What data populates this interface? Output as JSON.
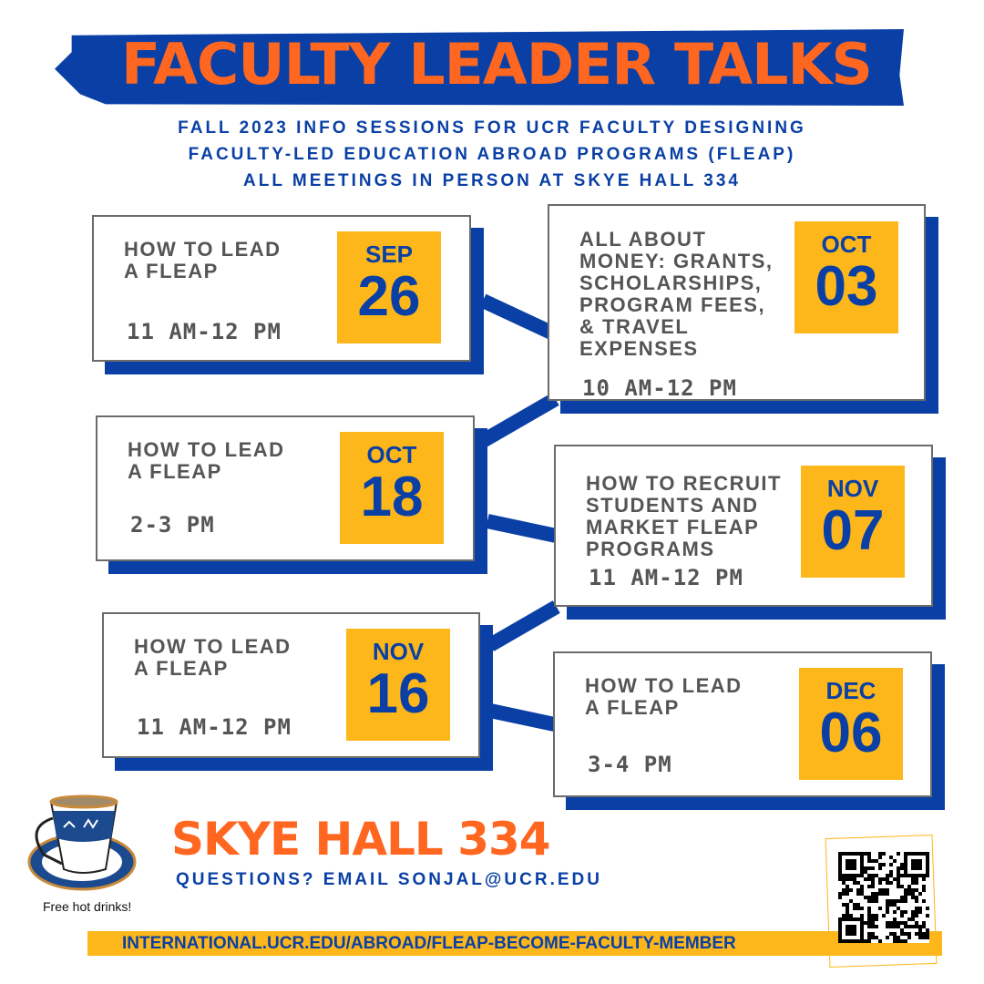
{
  "header": {
    "title": "FACULTY LEADER TALKS",
    "subtitle_lines": [
      "FALL 2023 INFO SESSIONS FOR UCR FACULTY DESIGNING",
      "FACULTY-LED EDUCATION ABROAD PROGRAMS (FLEAP)",
      "ALL MEETINGS IN PERSON AT SKYE HALL 334"
    ]
  },
  "sessions": [
    {
      "title": "HOW TO LEAD\nA FLEAP",
      "time": "11 AM-12 PM",
      "month": "SEP",
      "day": "26"
    },
    {
      "title": "ALL ABOUT\nMONEY: GRANTS,\nSCHOLARSHIPS,\nPROGRAM FEES,\n& TRAVEL\nEXPENSES",
      "time": "10 AM-12 PM",
      "month": "OCT",
      "day": "03"
    },
    {
      "title": "HOW TO LEAD\nA FLEAP",
      "time": "2-3 PM",
      "month": "OCT",
      "day": "18"
    },
    {
      "title": "HOW TO RECRUIT\nSTUDENTS AND\nMARKET FLEAP\nPROGRAMS",
      "time": "11 AM-12 PM",
      "month": "NOV",
      "day": "07"
    },
    {
      "title": "HOW TO LEAD\nA FLEAP",
      "time": "11 AM-12 PM",
      "month": "NOV",
      "day": "16"
    },
    {
      "title": "HOW TO LEAD\nA FLEAP",
      "time": "3-4 PM",
      "month": "DEC",
      "day": "06"
    }
  ],
  "footer": {
    "location": "SKYE HALL 334",
    "questions": "QUESTIONS? EMAIL SONJAL@UCR.EDU",
    "drinks": "Free hot drinks!",
    "url": "INTERNATIONAL.UCR.EDU/ABROAD/FLEAP-BECOME-FACULTY-MEMBER"
  },
  "colors": {
    "blue": "#0a40a5",
    "orange": "#ff6620",
    "yellow": "#fdb71a"
  }
}
